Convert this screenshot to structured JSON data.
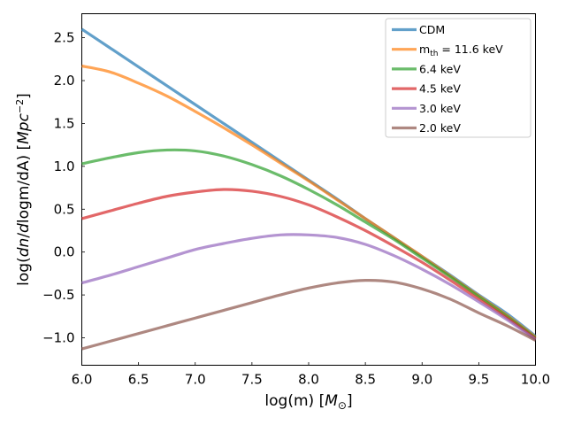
{
  "chart_data": {
    "type": "line",
    "title": "",
    "xlabel": "log(m) [M⊙]",
    "ylabel": "log(dn/dlogm/dA) [Mpc⁻²]",
    "xlim": [
      6.0,
      10.0
    ],
    "ylim": [
      -1.32,
      2.78
    ],
    "xticks": [
      6.0,
      6.5,
      7.0,
      7.5,
      8.0,
      8.5,
      9.0,
      9.5,
      10.0
    ],
    "xtick_labels": [
      "6.0",
      "6.5",
      "7.0",
      "7.5",
      "8.0",
      "8.5",
      "9.0",
      "9.5",
      "10.0"
    ],
    "yticks": [
      2.5,
      2.0,
      1.5,
      1.0,
      0.5,
      0.0,
      -0.5,
      -1.0
    ],
    "ytick_labels": [
      "2.5",
      "2.0",
      "1.5",
      "1.0",
      "0.5",
      "0.0",
      "−0.5",
      "−1.0"
    ],
    "legend_position": "top-right",
    "x": [
      6.0,
      6.25,
      6.5,
      6.75,
      7.0,
      7.25,
      7.5,
      7.75,
      8.0,
      8.25,
      8.5,
      8.75,
      9.0,
      9.25,
      9.5,
      9.75,
      10.0
    ],
    "series": [
      {
        "name": "CDM",
        "color": "#1f77b4",
        "values": [
          2.6,
          2.38,
          2.16,
          1.94,
          1.72,
          1.5,
          1.28,
          1.06,
          0.84,
          0.62,
          0.39,
          0.17,
          -0.05,
          -0.27,
          -0.5,
          -0.72,
          -0.98
        ]
      },
      {
        "name_prefix": "m",
        "name_sub": "th",
        "name_suffix": " = 11.6 keV",
        "color": "#ff7f0e",
        "values": [
          2.17,
          2.1,
          1.97,
          1.82,
          1.64,
          1.45,
          1.25,
          1.04,
          0.83,
          0.61,
          0.39,
          0.17,
          -0.05,
          -0.28,
          -0.51,
          -0.74,
          -0.99
        ]
      },
      {
        "name": "6.4 keV",
        "color": "#2ca02c",
        "values": [
          1.03,
          1.1,
          1.16,
          1.19,
          1.18,
          1.12,
          1.02,
          0.89,
          0.73,
          0.55,
          0.35,
          0.15,
          -0.07,
          -0.29,
          -0.52,
          -0.75,
          -1.0
        ]
      },
      {
        "name": "4.5 keV",
        "color": "#d62728",
        "values": [
          0.39,
          0.48,
          0.57,
          0.65,
          0.7,
          0.73,
          0.71,
          0.65,
          0.55,
          0.41,
          0.25,
          0.07,
          -0.12,
          -0.33,
          -0.55,
          -0.77,
          -1.01
        ]
      },
      {
        "name": "3.0 keV",
        "color": "#9467bd",
        "values": [
          -0.36,
          -0.27,
          -0.17,
          -0.07,
          0.03,
          0.1,
          0.16,
          0.2,
          0.2,
          0.17,
          0.09,
          -0.04,
          -0.2,
          -0.38,
          -0.58,
          -0.79,
          -1.02
        ]
      },
      {
        "name": "2.0 keV",
        "color": "#8c564b",
        "values": [
          -1.13,
          -1.04,
          -0.95,
          -0.86,
          -0.77,
          -0.68,
          -0.59,
          -0.5,
          -0.42,
          -0.36,
          -0.33,
          -0.35,
          -0.43,
          -0.55,
          -0.71,
          -0.86,
          -1.03
        ]
      }
    ]
  }
}
